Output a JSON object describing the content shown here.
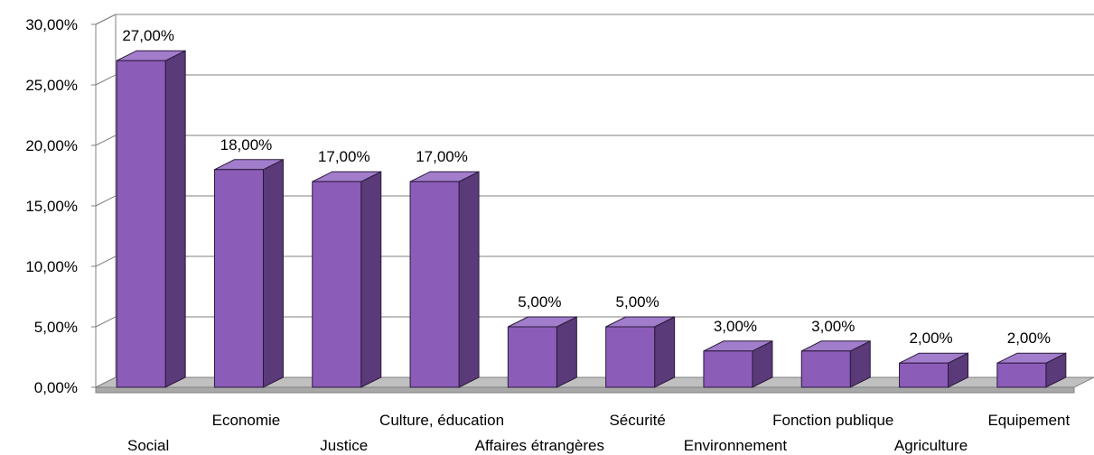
{
  "chart_data": {
    "type": "bar",
    "title": "",
    "xlabel": "",
    "ylabel": "",
    "ylim": [
      0,
      30
    ],
    "y_ticks": [
      "0,00%",
      "5,00%",
      "10,00%",
      "15,00%",
      "20,00%",
      "25,00%",
      "30,00%"
    ],
    "grid": true,
    "three_d": true,
    "categories": [
      "Social",
      "Economie",
      "Justice",
      "Culture, éducation",
      "Affaires étrangères",
      "Sécurité",
      "Environnement",
      "Fonction publique",
      "Agriculture",
      "Equipement"
    ],
    "values": [
      27,
      18,
      17,
      17,
      5,
      5,
      3,
      3,
      2,
      2
    ],
    "value_labels": [
      "27,00%",
      "18,00%",
      "17,00%",
      "17,00%",
      "5,00%",
      "5,00%",
      "3,00%",
      "3,00%",
      "2,00%",
      "2,00%"
    ],
    "colors": {
      "bar_front": "#8C5CB9",
      "bar_top": "#A27DCB",
      "bar_side": "#5A3A78",
      "floor": "#C0C0C0",
      "grid": "#808080"
    }
  }
}
